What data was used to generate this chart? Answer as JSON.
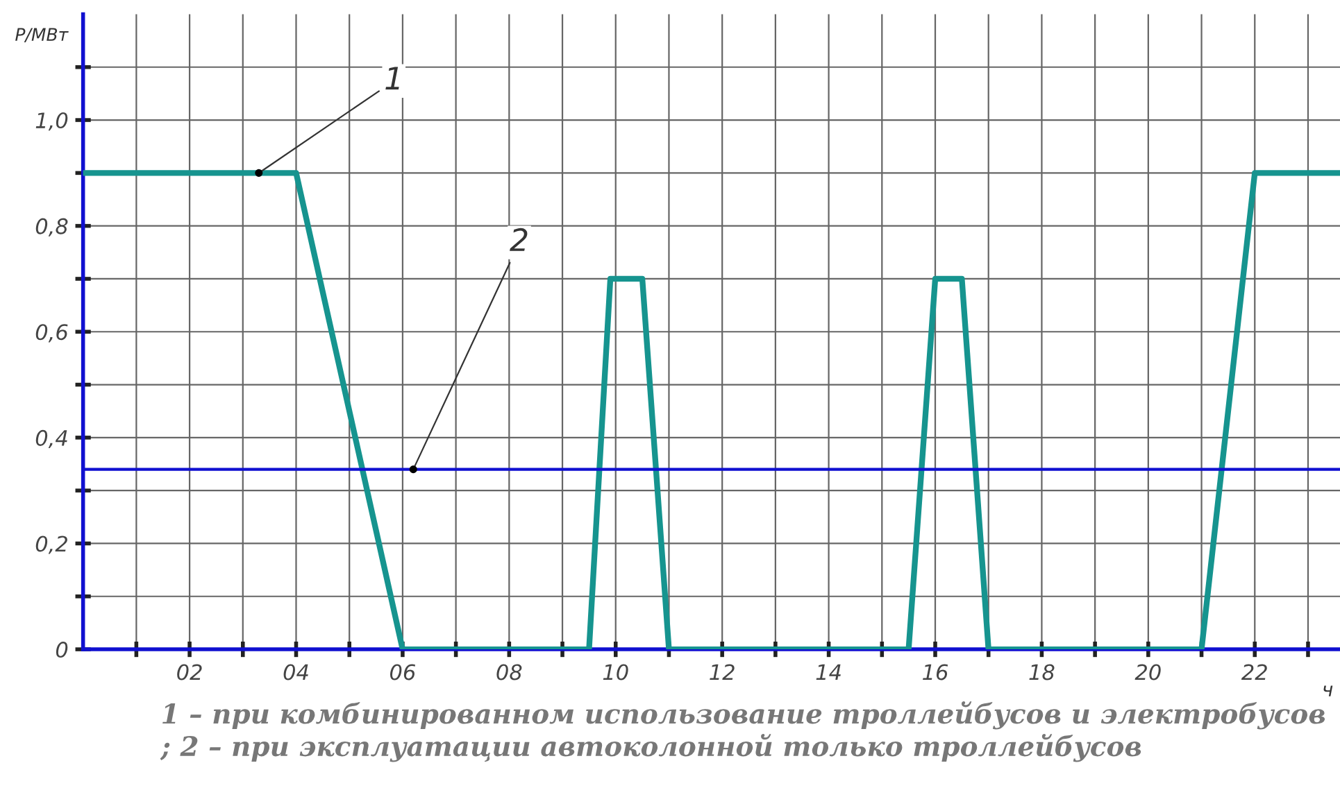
{
  "chart_data": {
    "type": "line",
    "ylabel": "P/МВт",
    "xlabel": "ч",
    "xlim": [
      0,
      23.6
    ],
    "ylim": [
      0,
      1.2
    ],
    "xticks": [
      {
        "value": 1,
        "label": null
      },
      {
        "value": 2,
        "label": "02"
      },
      {
        "value": 3,
        "label": null
      },
      {
        "value": 4,
        "label": "04"
      },
      {
        "value": 5,
        "label": null
      },
      {
        "value": 6,
        "label": "06"
      },
      {
        "value": 7,
        "label": null
      },
      {
        "value": 8,
        "label": "08"
      },
      {
        "value": 9,
        "label": null
      },
      {
        "value": 10,
        "label": "10"
      },
      {
        "value": 11,
        "label": null
      },
      {
        "value": 12,
        "label": "12"
      },
      {
        "value": 13,
        "label": null
      },
      {
        "value": 14,
        "label": "14"
      },
      {
        "value": 15,
        "label": null
      },
      {
        "value": 16,
        "label": "16"
      },
      {
        "value": 17,
        "label": null
      },
      {
        "value": 18,
        "label": "18"
      },
      {
        "value": 19,
        "label": null
      },
      {
        "value": 20,
        "label": "20"
      },
      {
        "value": 21,
        "label": null
      },
      {
        "value": 22,
        "label": "22"
      },
      {
        "value": 23,
        "label": null
      }
    ],
    "yticks": [
      {
        "value": 0,
        "label": "0"
      },
      {
        "value": 0.1,
        "label": null
      },
      {
        "value": 0.2,
        "label": "0,2"
      },
      {
        "value": 0.3,
        "label": null
      },
      {
        "value": 0.4,
        "label": "0,4"
      },
      {
        "value": 0.5,
        "label": null
      },
      {
        "value": 0.6,
        "label": "0,6"
      },
      {
        "value": 0.7,
        "label": null
      },
      {
        "value": 0.8,
        "label": "0,8"
      },
      {
        "value": 0.9,
        "label": null
      },
      {
        "value": 1.0,
        "label": "1,0"
      },
      {
        "value": 1.1,
        "label": null
      }
    ],
    "grid": true,
    "marker": "none",
    "line_style": "solid",
    "series": [
      {
        "color": "#16948f",
        "x": [
          0,
          4,
          6,
          9.5,
          9.9,
          10.5,
          11,
          15.5,
          16,
          16.5,
          17,
          21,
          22,
          23.6
        ],
        "values": [
          0.9,
          0.9,
          0,
          0,
          0.7,
          0.7,
          0,
          0,
          0.7,
          0.7,
          0,
          0,
          0.9,
          0.9
        ]
      },
      {
        "color": "#1010d0",
        "x": [
          0,
          23.6
        ],
        "values": [
          0.34,
          0.34
        ]
      }
    ],
    "annotations": [
      {
        "text": "1",
        "x": 3.3,
        "y": 0.9
      },
      {
        "text": "2",
        "x": 6.2,
        "y": 0.34
      },
      "1 – при комбинированном использование троллейбусов и электробусов ; 2 – при эксплуатации автоколонной только троллейбусов"
    ]
  }
}
